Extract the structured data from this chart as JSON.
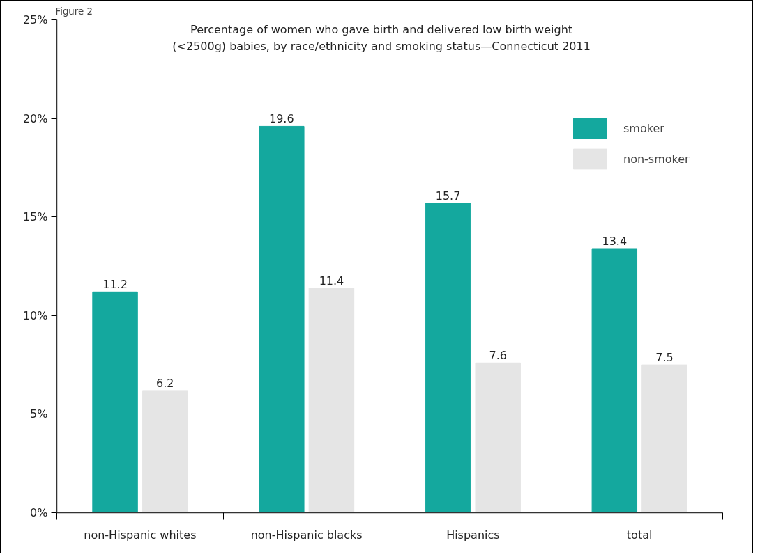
{
  "chart_data": {
    "type": "bar",
    "title": "Percentage of women who gave birth and delivered low birth weight\n(<2500g) babies, by race/ethnicity and smoking status—Connecticut 2011",
    "annotations": [
      "Figure 2"
    ],
    "categories": [
      "non-Hispanic whites",
      "non-Hispanic blacks",
      "Hispanics",
      "total"
    ],
    "series": [
      {
        "name": "smoker",
        "color": "#14a89e",
        "values": [
          11.2,
          19.6,
          15.7,
          13.4
        ]
      },
      {
        "name": "non-smoker",
        "color": "#e5e5e5",
        "values": [
          6.2,
          11.4,
          7.6,
          7.5
        ]
      }
    ],
    "ylim": [
      0,
      25
    ],
    "yticks": [
      {
        "value": 0,
        "label": "0%"
      },
      {
        "value": 5,
        "label": "5%"
      },
      {
        "value": 10,
        "label": "10%"
      },
      {
        "value": 15,
        "label": "15%"
      },
      {
        "value": 20,
        "label": "20%"
      },
      {
        "value": 25,
        "label": "25%"
      }
    ],
    "data_labels": true,
    "grid": false,
    "legend": "top right"
  }
}
